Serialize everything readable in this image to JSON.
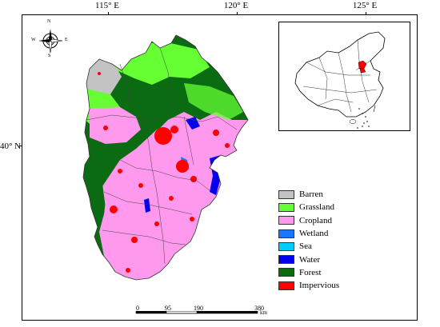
{
  "graticule": {
    "longitudes": [
      {
        "label": "115° E"
      },
      {
        "label": "120° E"
      },
      {
        "label": "125° E"
      }
    ],
    "latitudes": [
      {
        "label": "40° N"
      }
    ]
  },
  "compass": {
    "north": "N",
    "south": "S",
    "east": "E",
    "west": "W"
  },
  "legend": [
    {
      "label": "Barren",
      "color": "#c3c3c3"
    },
    {
      "label": "Grassland",
      "color": "#66ff33"
    },
    {
      "label": "Cropland",
      "color": "#ff99ee"
    },
    {
      "label": "Wetland",
      "color": "#1a75ff"
    },
    {
      "label": "Sea",
      "color": "#00ccff"
    },
    {
      "label": "Water",
      "color": "#0000ee"
    },
    {
      "label": "Forest",
      "color": "#0a6b12"
    },
    {
      "label": "Impervious",
      "color": "#ff0000"
    }
  ],
  "scalebar": {
    "ticks": [
      "0",
      "95",
      "190",
      "380"
    ],
    "unit": "km"
  },
  "inset": {
    "icon": "china-locator-map-icon"
  }
}
